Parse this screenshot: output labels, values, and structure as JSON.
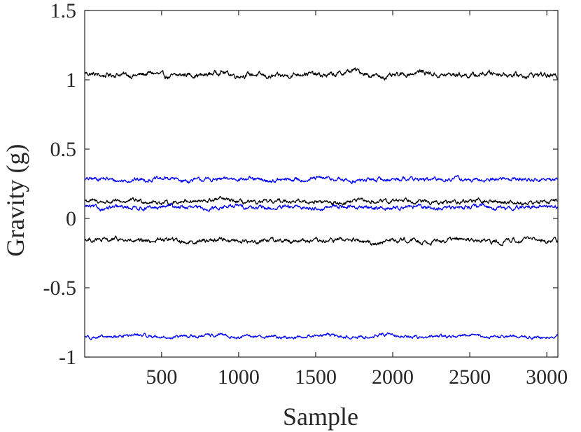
{
  "chart_data": {
    "type": "line",
    "title": "",
    "xlabel": "Sample",
    "ylabel": "Gravity (g)",
    "xlim": [
      1,
      3072
    ],
    "ylim": [
      -1,
      1.5
    ],
    "xticks": [
      500,
      1000,
      1500,
      2000,
      2500,
      3000
    ],
    "yticks": [
      -1,
      -0.5,
      0,
      0.5,
      1,
      1.5
    ],
    "xtick_labels": [
      "500",
      "1000",
      "1500",
      "2000",
      "2500",
      "3000"
    ],
    "ytick_labels": [
      "-1",
      "-0.5",
      "0",
      "0.5",
      "1",
      "1.5"
    ],
    "grid": false,
    "legend": "none",
    "colors": {
      "black": "#000000",
      "blue": "#0000ff",
      "axis": "#262626"
    },
    "series": [
      {
        "color": "#000000",
        "mean": 1.03,
        "noise": 0.012,
        "values": [
          1.05,
          1.03,
          1.04,
          1.03,
          1.05,
          1.02,
          1.04,
          1.03,
          1.06,
          1.03,
          1.04,
          1.02,
          1.03,
          1.05,
          1.03,
          1.04,
          1.07,
          1.03,
          1.02,
          1.04,
          1.06,
          1.03,
          1.04,
          1.03,
          1.05,
          1.04,
          1.03,
          1.04,
          1.02
        ]
      },
      {
        "color": "#0000ff",
        "mean": 0.28,
        "noise": 0.01,
        "values": [
          0.28,
          0.29,
          0.27,
          0.28,
          0.28,
          0.29,
          0.27,
          0.28,
          0.28,
          0.29,
          0.28,
          0.27,
          0.28,
          0.28,
          0.29,
          0.28,
          0.27,
          0.28,
          0.28,
          0.29,
          0.28,
          0.28,
          0.29,
          0.27,
          0.28,
          0.29,
          0.28,
          0.28,
          0.28
        ]
      },
      {
        "color": "#000000",
        "mean": 0.12,
        "noise": 0.01,
        "values": [
          0.13,
          0.12,
          0.12,
          0.13,
          0.12,
          0.11,
          0.13,
          0.12,
          0.14,
          0.12,
          0.11,
          0.12,
          0.13,
          0.12,
          0.12,
          0.11,
          0.13,
          0.12,
          0.12,
          0.14,
          0.12,
          0.11,
          0.12,
          0.13,
          0.12,
          0.12,
          0.11,
          0.12,
          0.13
        ]
      },
      {
        "color": "#0000ff",
        "mean": 0.08,
        "noise": 0.01,
        "values": [
          0.09,
          0.07,
          0.08,
          0.08,
          0.07,
          0.09,
          0.08,
          0.07,
          0.08,
          0.09,
          0.08,
          0.07,
          0.08,
          0.08,
          0.07,
          0.09,
          0.08,
          0.08,
          0.07,
          0.09,
          0.08,
          0.07,
          0.08,
          0.09,
          0.08,
          0.07,
          0.08,
          0.09,
          0.08
        ]
      },
      {
        "color": "#000000",
        "mean": -0.16,
        "noise": 0.011,
        "values": [
          -0.15,
          -0.16,
          -0.15,
          -0.17,
          -0.16,
          -0.15,
          -0.17,
          -0.16,
          -0.15,
          -0.16,
          -0.17,
          -0.15,
          -0.16,
          -0.16,
          -0.17,
          -0.15,
          -0.16,
          -0.18,
          -0.16,
          -0.15,
          -0.17,
          -0.16,
          -0.15,
          -0.16,
          -0.17,
          -0.16,
          -0.15,
          -0.16,
          -0.16
        ]
      },
      {
        "color": "#0000ff",
        "mean": -0.85,
        "noise": 0.008,
        "values": [
          -0.85,
          -0.86,
          -0.85,
          -0.84,
          -0.85,
          -0.86,
          -0.85,
          -0.85,
          -0.84,
          -0.86,
          -0.85,
          -0.85,
          -0.86,
          -0.85,
          -0.84,
          -0.85,
          -0.86,
          -0.85,
          -0.83,
          -0.85,
          -0.86,
          -0.85,
          -0.85,
          -0.84,
          -0.86,
          -0.85,
          -0.85,
          -0.86,
          -0.85
        ]
      }
    ]
  }
}
